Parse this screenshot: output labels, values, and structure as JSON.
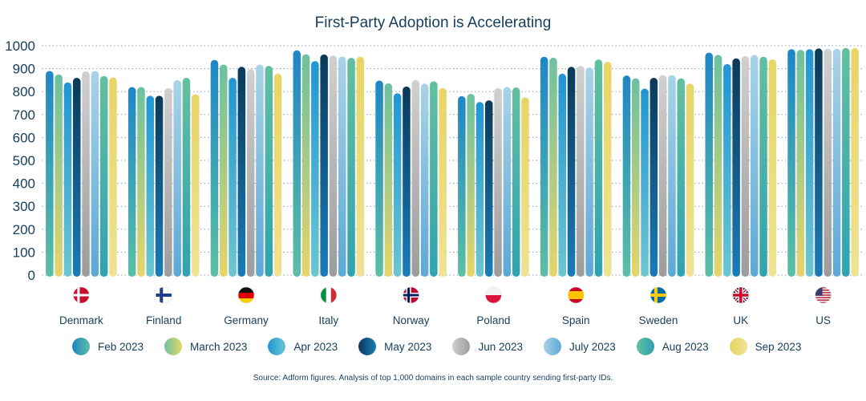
{
  "chart_data": {
    "type": "bar",
    "title": "First-Party Adoption is Accelerating",
    "categories": [
      "Denmark",
      "Finland",
      "Germany",
      "Italy",
      "Norway",
      "Poland",
      "Spain",
      "Sweden",
      "UK",
      "US"
    ],
    "ylim": [
      0,
      1000
    ],
    "yticks": [
      0,
      100,
      200,
      300,
      400,
      500,
      600,
      700,
      800,
      900,
      1000
    ],
    "grid": true,
    "legend_position": "bottom",
    "series": [
      {
        "name": "Feb 2023",
        "colors": [
          "#1f86c4",
          "#5cbfa4"
        ],
        "values": [
          890,
          820,
          938,
          980,
          848,
          780,
          952,
          870,
          970,
          985
        ]
      },
      {
        "name": "March 2023",
        "colors": [
          "#6cc1a0",
          "#e6d56a"
        ],
        "values": [
          875,
          820,
          918,
          963,
          836,
          790,
          948,
          858,
          960,
          982
        ]
      },
      {
        "name": "Apr 2023",
        "colors": [
          "#2196d3",
          "#6cc6d1"
        ],
        "values": [
          840,
          782,
          860,
          933,
          793,
          755,
          878,
          813,
          920,
          985
        ]
      },
      {
        "name": "May 2023",
        "colors": [
          "#0b3a5a",
          "#1a7cb8"
        ],
        "values": [
          860,
          782,
          908,
          962,
          822,
          762,
          908,
          860,
          945,
          988
        ]
      },
      {
        "name": "Jun 2023",
        "colors": [
          "#d0d0d0",
          "#9c9c9c"
        ],
        "values": [
          888,
          815,
          898,
          957,
          850,
          815,
          912,
          872,
          955,
          987
        ]
      },
      {
        "name": "July 2023",
        "colors": [
          "#a9d3e7",
          "#5da8d6"
        ],
        "values": [
          890,
          850,
          918,
          953,
          835,
          820,
          905,
          872,
          960,
          987
        ]
      },
      {
        "name": "Aug 2023",
        "colors": [
          "#63bfa0",
          "#2fa3b0"
        ],
        "values": [
          868,
          860,
          912,
          947,
          845,
          818,
          940,
          858,
          952,
          990
        ]
      },
      {
        "name": "Sep 2023",
        "colors": [
          "#e7d567",
          "#efe394"
        ],
        "values": [
          862,
          788,
          878,
          952,
          815,
          775,
          930,
          835,
          940,
          990
        ]
      }
    ],
    "flags": [
      "denmark-flag",
      "finland-flag",
      "germany-flag",
      "italy-flag",
      "norway-flag",
      "poland-flag",
      "spain-flag",
      "sweden-flag",
      "uk-flag",
      "us-flag"
    ]
  },
  "source": "Source: Adform figures. Analysis of top 1,000 domains in each sample country sending first-party IDs."
}
